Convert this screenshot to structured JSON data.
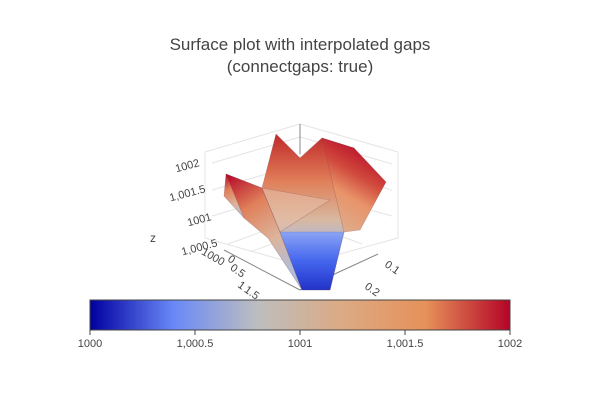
{
  "chart_data": {
    "type": "surface",
    "title_lines": [
      "Surface plot with interpolated gaps",
      "(connectgaps: true)"
    ],
    "scene": {
      "z_axis": {
        "title": "z",
        "ticks": [
          "1002",
          "1,001.5",
          "1001",
          "1,000.5",
          "1000"
        ]
      },
      "y_axis": {
        "ticks": [
          "0",
          "0.5",
          "1",
          "1.5"
        ]
      },
      "x_axis": {
        "ticks": [
          "0.1",
          "0.2"
        ]
      }
    },
    "colorbar": {
      "min": 1000,
      "max": 1002,
      "ticks": [
        {
          "value": 1000,
          "label": "1000"
        },
        {
          "value": 1000.5,
          "label": "1,000.5"
        },
        {
          "value": 1001,
          "label": "1001"
        },
        {
          "value": 1001.5,
          "label": "1,001.5"
        },
        {
          "value": 1002,
          "label": "1002"
        }
      ],
      "colorscale": [
        "#0000a0",
        "#6a89f7",
        "#bebebe",
        "#dcaa84",
        "#e6915a",
        "#b40426"
      ]
    }
  }
}
